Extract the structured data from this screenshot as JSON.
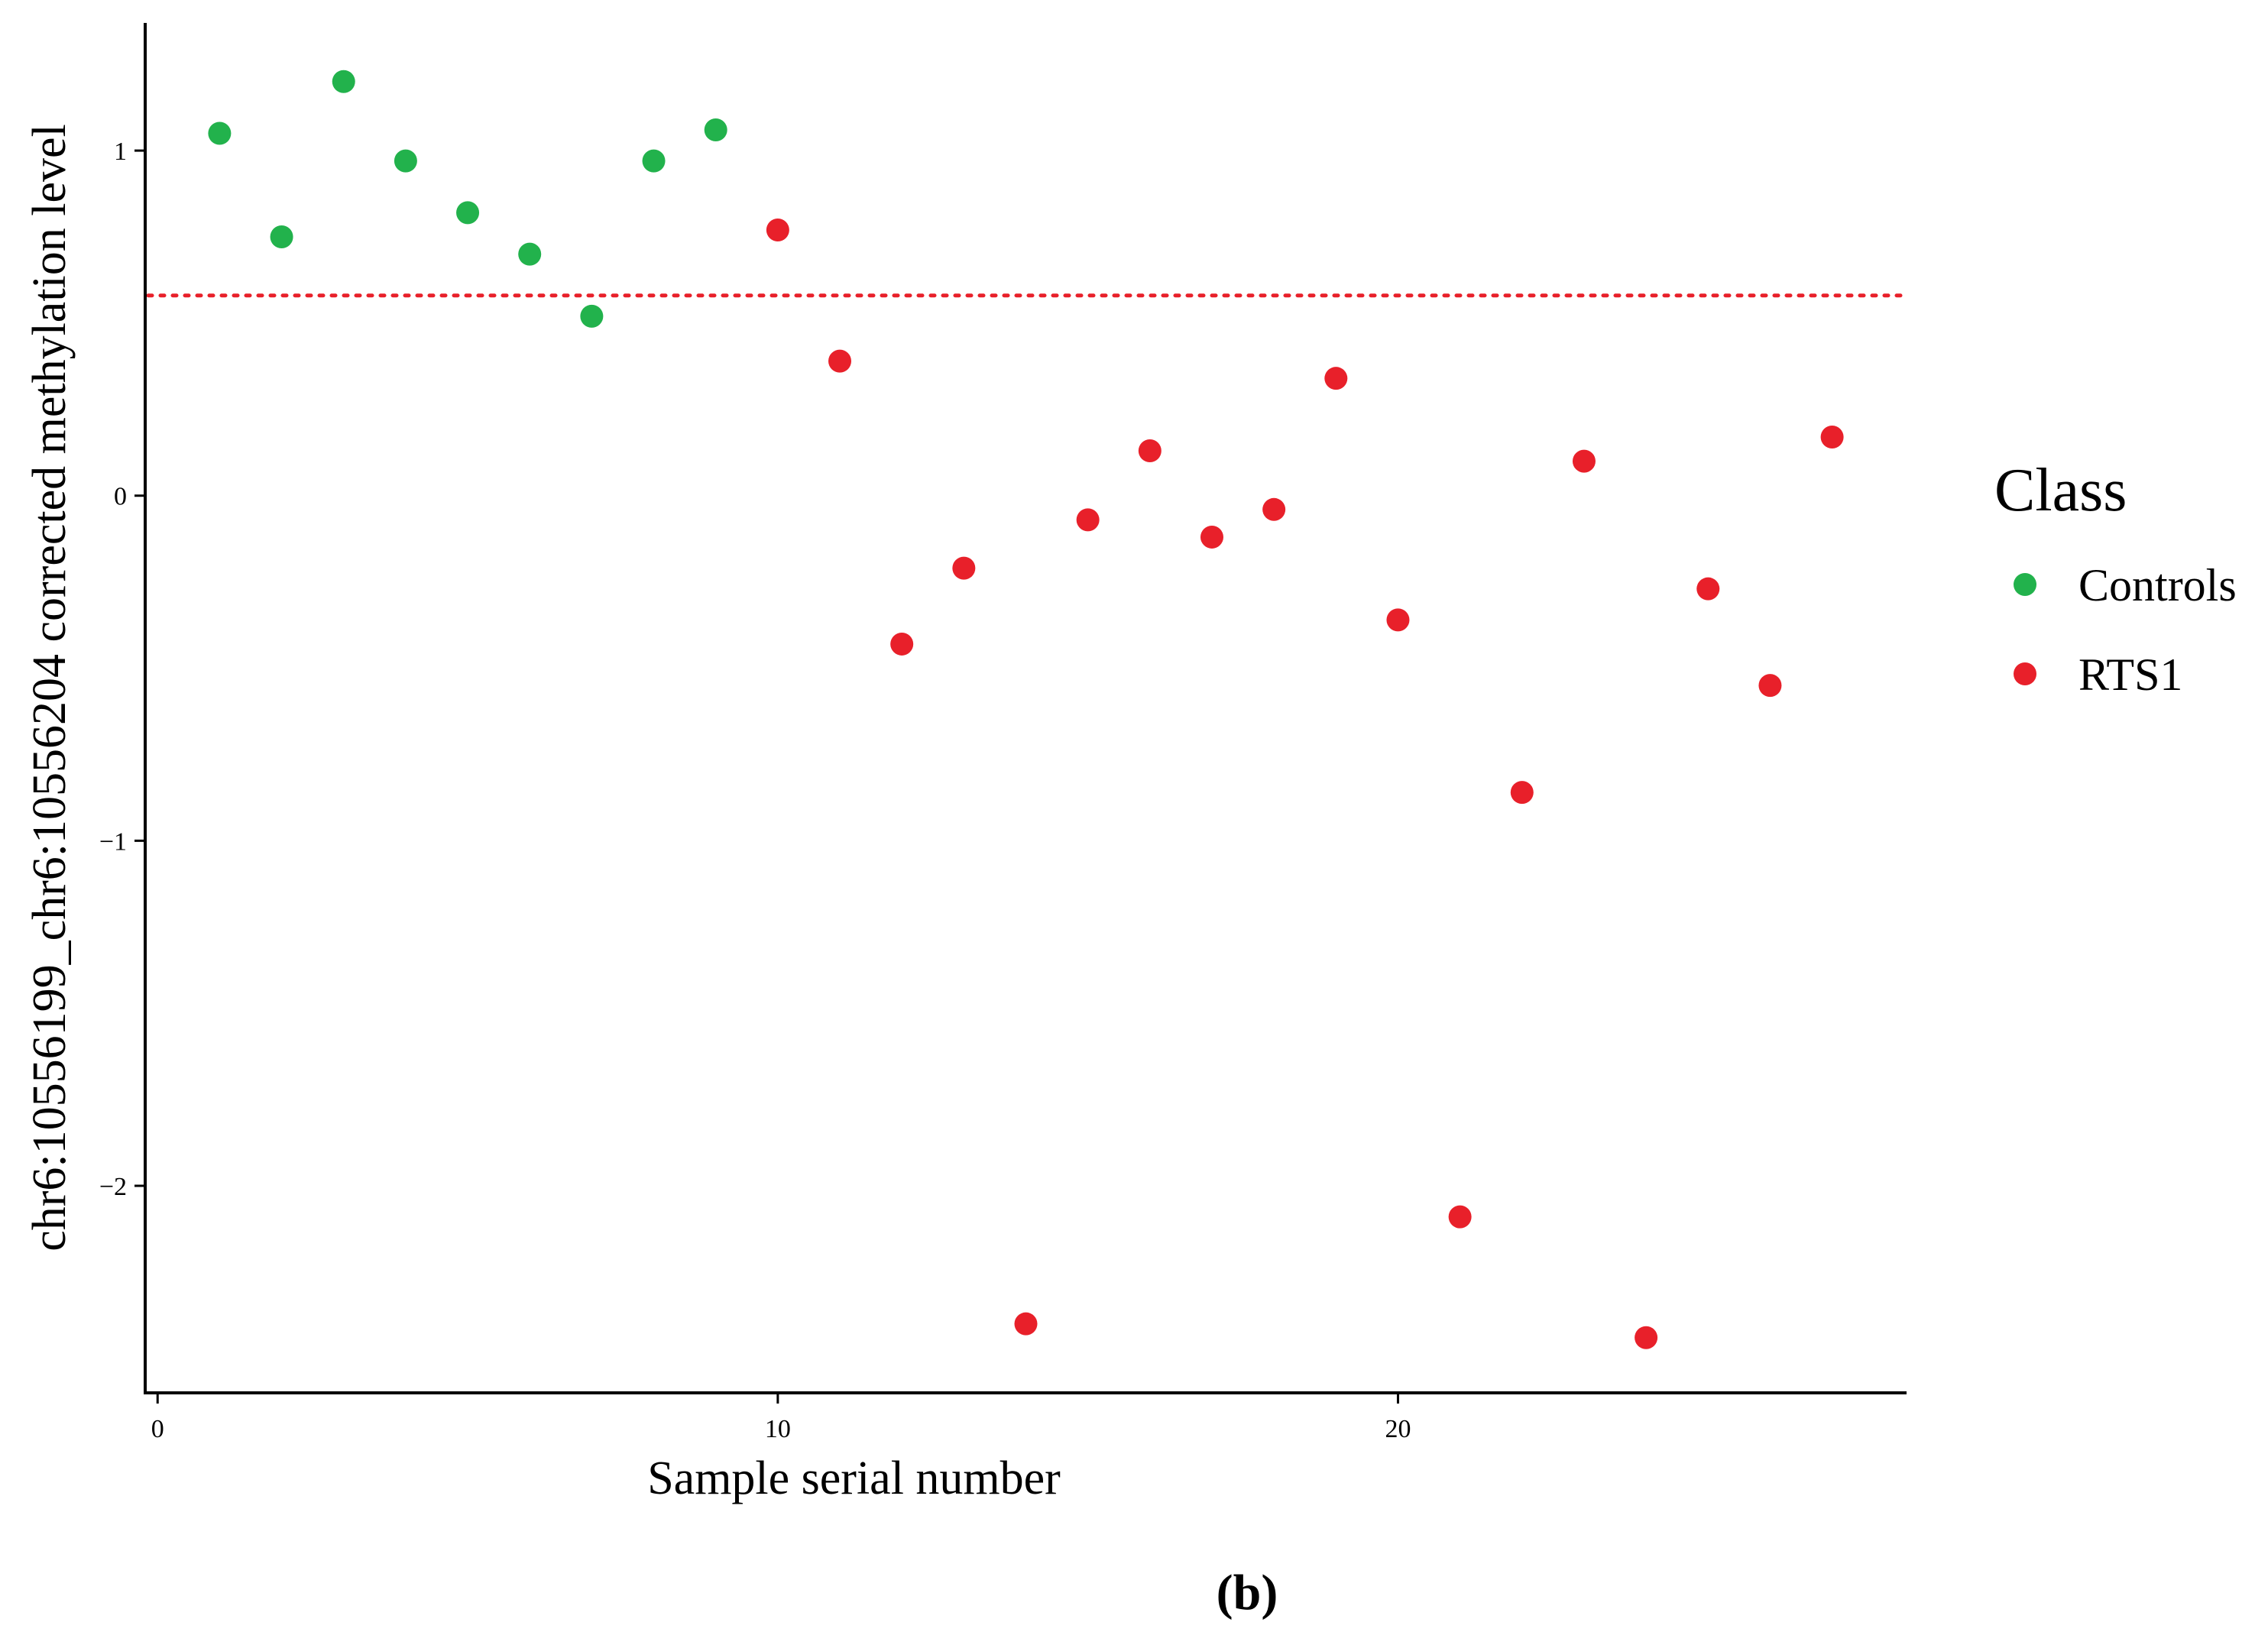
{
  "chart_data": {
    "type": "scatter",
    "title": "",
    "xlabel": "Sample serial number",
    "ylabel": "chr6:10556199_chr6:10556204 corrected methylation level",
    "xlim": [
      -0.2,
      28.2
    ],
    "ylim": [
      -2.6,
      1.37
    ],
    "x_ticks": [
      0,
      10,
      20
    ],
    "x_tick_labels": [
      "0",
      "10",
      "20"
    ],
    "y_ticks": [
      1,
      0,
      -1,
      -2
    ],
    "y_tick_labels": [
      "1",
      "0",
      "−1",
      "−2"
    ],
    "threshold": {
      "y": 0.58,
      "style": "dotted",
      "color": "#e8202a"
    },
    "legend": {
      "title": "Class",
      "position": "right"
    },
    "series": [
      {
        "name": "Controls",
        "color": "#22b24c",
        "x": [
          1,
          2,
          3,
          4,
          5,
          6,
          7,
          8,
          9
        ],
        "y": [
          1.05,
          0.75,
          1.2,
          0.97,
          0.82,
          0.7,
          0.52,
          0.97,
          1.06
        ]
      },
      {
        "name": "RTS1",
        "color": "#e8202a",
        "x": [
          10,
          11,
          12,
          13,
          14,
          15,
          16,
          17,
          18,
          19,
          20,
          21,
          22,
          23,
          24,
          25,
          26,
          27
        ],
        "y": [
          0.77,
          0.39,
          -0.43,
          -0.21,
          -2.4,
          -0.07,
          0.13,
          -0.12,
          -0.04,
          0.34,
          -0.36,
          -2.09,
          -0.86,
          0.1,
          -2.44,
          -0.27,
          -0.55,
          0.17
        ]
      }
    ]
  },
  "panel_label": "(b)"
}
